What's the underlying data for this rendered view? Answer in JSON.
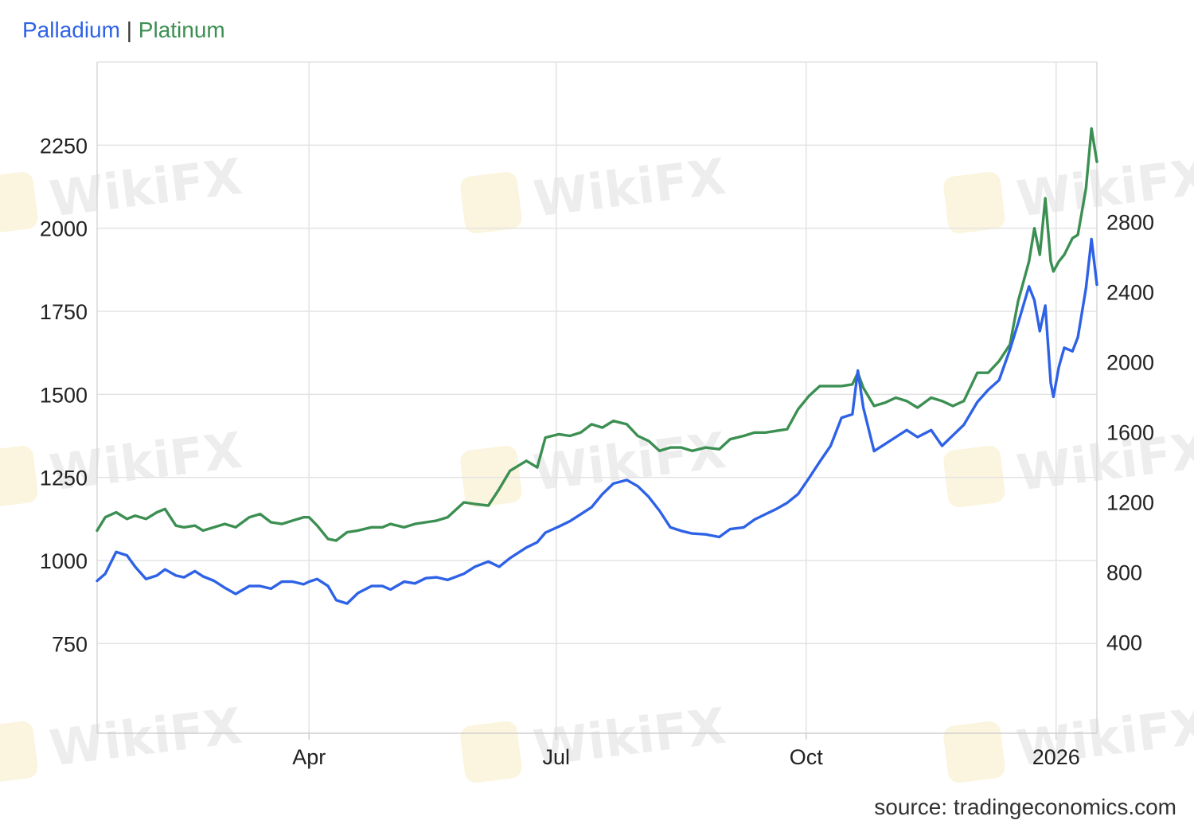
{
  "legend": {
    "separator": "|",
    "palladium_color": "#2e62e6",
    "platinum_color": "#3c8f52"
  },
  "watermark": {
    "text": "WikiFX"
  },
  "source": "source: tradingeconomics.com",
  "chart_data": {
    "type": "line",
    "title": "",
    "x_tick_labels": [
      "Apr",
      "Jul",
      "Oct",
      "2026"
    ],
    "x_range": [
      "2025-01-13",
      "2026-01-16"
    ],
    "y_left": {
      "ticks": [
        750,
        1000,
        1250,
        1500,
        1750,
        2000,
        2250
      ],
      "range": [
        480,
        2500
      ]
    },
    "y_right": {
      "ticks": [
        400,
        800,
        1200,
        1600,
        2000,
        2400,
        2800
      ],
      "range": [
        -120,
        3710
      ]
    },
    "grid": true,
    "legend_position": "top-left",
    "series": [
      {
        "name": "Palladium",
        "axis": "right",
        "color": "#2e62e6",
        "points": [
          [
            "2025-01-13",
            750
          ],
          [
            "2025-01-16",
            790
          ],
          [
            "2025-01-20",
            915
          ],
          [
            "2025-01-24",
            895
          ],
          [
            "2025-01-27",
            830
          ],
          [
            "2025-01-31",
            760
          ],
          [
            "2025-02-04",
            780
          ],
          [
            "2025-02-07",
            815
          ],
          [
            "2025-02-11",
            780
          ],
          [
            "2025-02-14",
            770
          ],
          [
            "2025-02-18",
            805
          ],
          [
            "2025-02-21",
            775
          ],
          [
            "2025-02-25",
            750
          ],
          [
            "2025-03-01",
            710
          ],
          [
            "2025-03-05",
            675
          ],
          [
            "2025-03-10",
            720
          ],
          [
            "2025-03-14",
            720
          ],
          [
            "2025-03-18",
            705
          ],
          [
            "2025-03-22",
            745
          ],
          [
            "2025-03-26",
            745
          ],
          [
            "2025-03-30",
            730
          ],
          [
            "2025-04-01",
            745
          ],
          [
            "2025-04-04",
            760
          ],
          [
            "2025-04-08",
            720
          ],
          [
            "2025-04-11",
            640
          ],
          [
            "2025-04-15",
            620
          ],
          [
            "2025-04-19",
            680
          ],
          [
            "2025-04-24",
            720
          ],
          [
            "2025-04-28",
            720
          ],
          [
            "2025-05-01",
            700
          ],
          [
            "2025-05-06",
            745
          ],
          [
            "2025-05-10",
            735
          ],
          [
            "2025-05-14",
            765
          ],
          [
            "2025-05-18",
            770
          ],
          [
            "2025-05-22",
            755
          ],
          [
            "2025-05-28",
            790
          ],
          [
            "2025-06-01",
            830
          ],
          [
            "2025-06-06",
            860
          ],
          [
            "2025-06-10",
            830
          ],
          [
            "2025-06-14",
            880
          ],
          [
            "2025-06-20",
            940
          ],
          [
            "2025-06-24",
            970
          ],
          [
            "2025-06-27",
            1025
          ],
          [
            "2025-07-02",
            1060
          ],
          [
            "2025-07-06",
            1090
          ],
          [
            "2025-07-10",
            1130
          ],
          [
            "2025-07-14",
            1170
          ],
          [
            "2025-07-18",
            1245
          ],
          [
            "2025-07-22",
            1305
          ],
          [
            "2025-07-27",
            1325
          ],
          [
            "2025-07-31",
            1290
          ],
          [
            "2025-08-04",
            1230
          ],
          [
            "2025-08-08",
            1150
          ],
          [
            "2025-08-12",
            1055
          ],
          [
            "2025-08-16",
            1035
          ],
          [
            "2025-08-20",
            1020
          ],
          [
            "2025-08-25",
            1015
          ],
          [
            "2025-08-30",
            1000
          ],
          [
            "2025-09-03",
            1045
          ],
          [
            "2025-09-08",
            1055
          ],
          [
            "2025-09-12",
            1100
          ],
          [
            "2025-09-16",
            1130
          ],
          [
            "2025-09-20",
            1160
          ],
          [
            "2025-09-24",
            1195
          ],
          [
            "2025-09-28",
            1245
          ],
          [
            "2025-10-02",
            1335
          ],
          [
            "2025-10-06",
            1430
          ],
          [
            "2025-10-10",
            1520
          ],
          [
            "2025-10-14",
            1680
          ],
          [
            "2025-10-18",
            1700
          ],
          [
            "2025-10-20",
            1950
          ],
          [
            "2025-10-22",
            1740
          ],
          [
            "2025-10-26",
            1490
          ],
          [
            "2025-10-30",
            1530
          ],
          [
            "2025-11-03",
            1570
          ],
          [
            "2025-11-07",
            1610
          ],
          [
            "2025-11-11",
            1570
          ],
          [
            "2025-11-16",
            1610
          ],
          [
            "2025-11-20",
            1520
          ],
          [
            "2025-11-24",
            1580
          ],
          [
            "2025-11-28",
            1640
          ],
          [
            "2025-12-03",
            1770
          ],
          [
            "2025-12-07",
            1840
          ],
          [
            "2025-12-11",
            1895
          ],
          [
            "2025-12-15",
            2070
          ],
          [
            "2025-12-18",
            2220
          ],
          [
            "2025-12-22",
            2430
          ],
          [
            "2025-12-24",
            2350
          ],
          [
            "2025-12-26",
            2175
          ],
          [
            "2025-12-28",
            2320
          ],
          [
            "2025-12-30",
            1880
          ],
          [
            "2025-12-31",
            1800
          ],
          [
            "2026-01-02",
            1970
          ],
          [
            "2026-01-04",
            2080
          ],
          [
            "2026-01-07",
            2060
          ],
          [
            "2026-01-09",
            2140
          ],
          [
            "2026-01-12",
            2420
          ],
          [
            "2026-01-14",
            2700
          ],
          [
            "2026-01-16",
            2440
          ]
        ]
      },
      {
        "name": "Platinum",
        "axis": "left",
        "color": "#3c8f52",
        "points": [
          [
            "2025-01-13",
            1090
          ],
          [
            "2025-01-16",
            1130
          ],
          [
            "2025-01-20",
            1145
          ],
          [
            "2025-01-24",
            1125
          ],
          [
            "2025-01-27",
            1135
          ],
          [
            "2025-01-31",
            1125
          ],
          [
            "2025-02-04",
            1145
          ],
          [
            "2025-02-07",
            1155
          ],
          [
            "2025-02-11",
            1105
          ],
          [
            "2025-02-14",
            1100
          ],
          [
            "2025-02-18",
            1105
          ],
          [
            "2025-02-21",
            1090
          ],
          [
            "2025-02-25",
            1100
          ],
          [
            "2025-03-01",
            1110
          ],
          [
            "2025-03-05",
            1100
          ],
          [
            "2025-03-10",
            1130
          ],
          [
            "2025-03-14",
            1140
          ],
          [
            "2025-03-18",
            1115
          ],
          [
            "2025-03-22",
            1110
          ],
          [
            "2025-03-26",
            1120
          ],
          [
            "2025-03-30",
            1130
          ],
          [
            "2025-04-01",
            1130
          ],
          [
            "2025-04-04",
            1105
          ],
          [
            "2025-04-08",
            1065
          ],
          [
            "2025-04-11",
            1060
          ],
          [
            "2025-04-15",
            1085
          ],
          [
            "2025-04-19",
            1090
          ],
          [
            "2025-04-24",
            1100
          ],
          [
            "2025-04-28",
            1100
          ],
          [
            "2025-05-01",
            1110
          ],
          [
            "2025-05-06",
            1100
          ],
          [
            "2025-05-10",
            1110
          ],
          [
            "2025-05-14",
            1115
          ],
          [
            "2025-05-18",
            1120
          ],
          [
            "2025-05-22",
            1130
          ],
          [
            "2025-05-28",
            1175
          ],
          [
            "2025-06-01",
            1170
          ],
          [
            "2025-06-06",
            1165
          ],
          [
            "2025-06-10",
            1215
          ],
          [
            "2025-06-14",
            1270
          ],
          [
            "2025-06-20",
            1300
          ],
          [
            "2025-06-24",
            1280
          ],
          [
            "2025-06-27",
            1370
          ],
          [
            "2025-07-02",
            1380
          ],
          [
            "2025-07-06",
            1375
          ],
          [
            "2025-07-10",
            1385
          ],
          [
            "2025-07-14",
            1410
          ],
          [
            "2025-07-18",
            1400
          ],
          [
            "2025-07-22",
            1420
          ],
          [
            "2025-07-27",
            1410
          ],
          [
            "2025-07-31",
            1375
          ],
          [
            "2025-08-04",
            1360
          ],
          [
            "2025-08-08",
            1330
          ],
          [
            "2025-08-12",
            1340
          ],
          [
            "2025-08-16",
            1340
          ],
          [
            "2025-08-20",
            1330
          ],
          [
            "2025-08-25",
            1340
          ],
          [
            "2025-08-30",
            1335
          ],
          [
            "2025-09-03",
            1365
          ],
          [
            "2025-09-08",
            1375
          ],
          [
            "2025-09-12",
            1385
          ],
          [
            "2025-09-16",
            1385
          ],
          [
            "2025-09-20",
            1390
          ],
          [
            "2025-09-24",
            1395
          ],
          [
            "2025-09-28",
            1455
          ],
          [
            "2025-10-02",
            1495
          ],
          [
            "2025-10-06",
            1525
          ],
          [
            "2025-10-10",
            1525
          ],
          [
            "2025-10-14",
            1525
          ],
          [
            "2025-10-18",
            1530
          ],
          [
            "2025-10-20",
            1565
          ],
          [
            "2025-10-22",
            1520
          ],
          [
            "2025-10-26",
            1465
          ],
          [
            "2025-10-30",
            1475
          ],
          [
            "2025-11-03",
            1490
          ],
          [
            "2025-11-07",
            1480
          ],
          [
            "2025-11-11",
            1460
          ],
          [
            "2025-11-16",
            1490
          ],
          [
            "2025-11-20",
            1480
          ],
          [
            "2025-11-24",
            1465
          ],
          [
            "2025-11-28",
            1480
          ],
          [
            "2025-12-03",
            1565
          ],
          [
            "2025-12-07",
            1565
          ],
          [
            "2025-12-11",
            1600
          ],
          [
            "2025-12-15",
            1650
          ],
          [
            "2025-12-18",
            1780
          ],
          [
            "2025-12-22",
            1900
          ],
          [
            "2025-12-24",
            2000
          ],
          [
            "2025-12-26",
            1920
          ],
          [
            "2025-12-28",
            2090
          ],
          [
            "2025-12-30",
            1900
          ],
          [
            "2025-12-31",
            1870
          ],
          [
            "2026-01-02",
            1900
          ],
          [
            "2026-01-04",
            1920
          ],
          [
            "2026-01-07",
            1970
          ],
          [
            "2026-01-09",
            1980
          ],
          [
            "2026-01-12",
            2120
          ],
          [
            "2026-01-14",
            2300
          ],
          [
            "2026-01-16",
            2200
          ]
        ]
      }
    ]
  }
}
